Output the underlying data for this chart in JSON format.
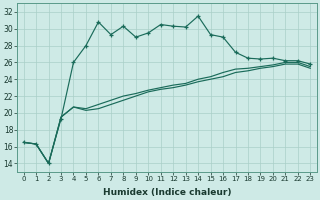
{
  "xlabel": "Humidex (Indice chaleur)",
  "bg_color": "#ceeae6",
  "line_color": "#1a6b5a",
  "grid_color": "#aacfc8",
  "xlim": [
    -0.5,
    23.5
  ],
  "ylim": [
    13,
    33
  ],
  "xticks": [
    0,
    1,
    2,
    3,
    4,
    5,
    6,
    7,
    8,
    9,
    10,
    11,
    12,
    13,
    14,
    15,
    16,
    17,
    18,
    19,
    20,
    21,
    22,
    23
  ],
  "yticks": [
    14,
    16,
    18,
    20,
    22,
    24,
    26,
    28,
    30,
    32
  ],
  "line1_x": [
    0,
    1,
    2,
    3,
    4,
    5,
    6,
    7,
    8,
    9,
    10,
    11,
    12,
    13,
    14,
    15,
    16,
    17,
    18,
    19,
    20,
    21,
    22,
    23
  ],
  "line1_y": [
    16.5,
    16.3,
    14.0,
    19.3,
    26.0,
    28.0,
    30.8,
    29.3,
    30.3,
    29.0,
    29.5,
    30.5,
    30.3,
    30.2,
    31.5,
    29.3,
    29.0,
    27.2,
    26.5,
    26.4,
    26.5,
    26.2,
    26.2,
    25.8
  ],
  "line2_x": [
    0,
    1,
    2,
    3,
    4,
    5,
    6,
    7,
    8,
    9,
    10,
    11,
    12,
    13,
    14,
    15,
    16,
    17,
    18,
    19,
    20,
    21,
    22,
    23
  ],
  "line2_y": [
    16.5,
    16.3,
    14.0,
    19.5,
    20.7,
    20.5,
    21.0,
    21.5,
    22.0,
    22.3,
    22.7,
    23.0,
    23.3,
    23.5,
    24.0,
    24.3,
    24.8,
    25.2,
    25.3,
    25.5,
    25.7,
    26.0,
    26.0,
    25.5
  ],
  "line3_x": [
    0,
    1,
    2,
    3,
    4,
    5,
    6,
    7,
    8,
    9,
    10,
    11,
    12,
    13,
    14,
    15,
    16,
    17,
    18,
    19,
    20,
    21,
    22,
    23
  ],
  "line3_y": [
    16.5,
    16.3,
    14.0,
    19.5,
    20.7,
    20.3,
    20.5,
    21.0,
    21.5,
    22.0,
    22.5,
    22.8,
    23.0,
    23.3,
    23.7,
    24.0,
    24.3,
    24.8,
    25.0,
    25.3,
    25.5,
    25.8,
    25.8,
    25.3
  ]
}
